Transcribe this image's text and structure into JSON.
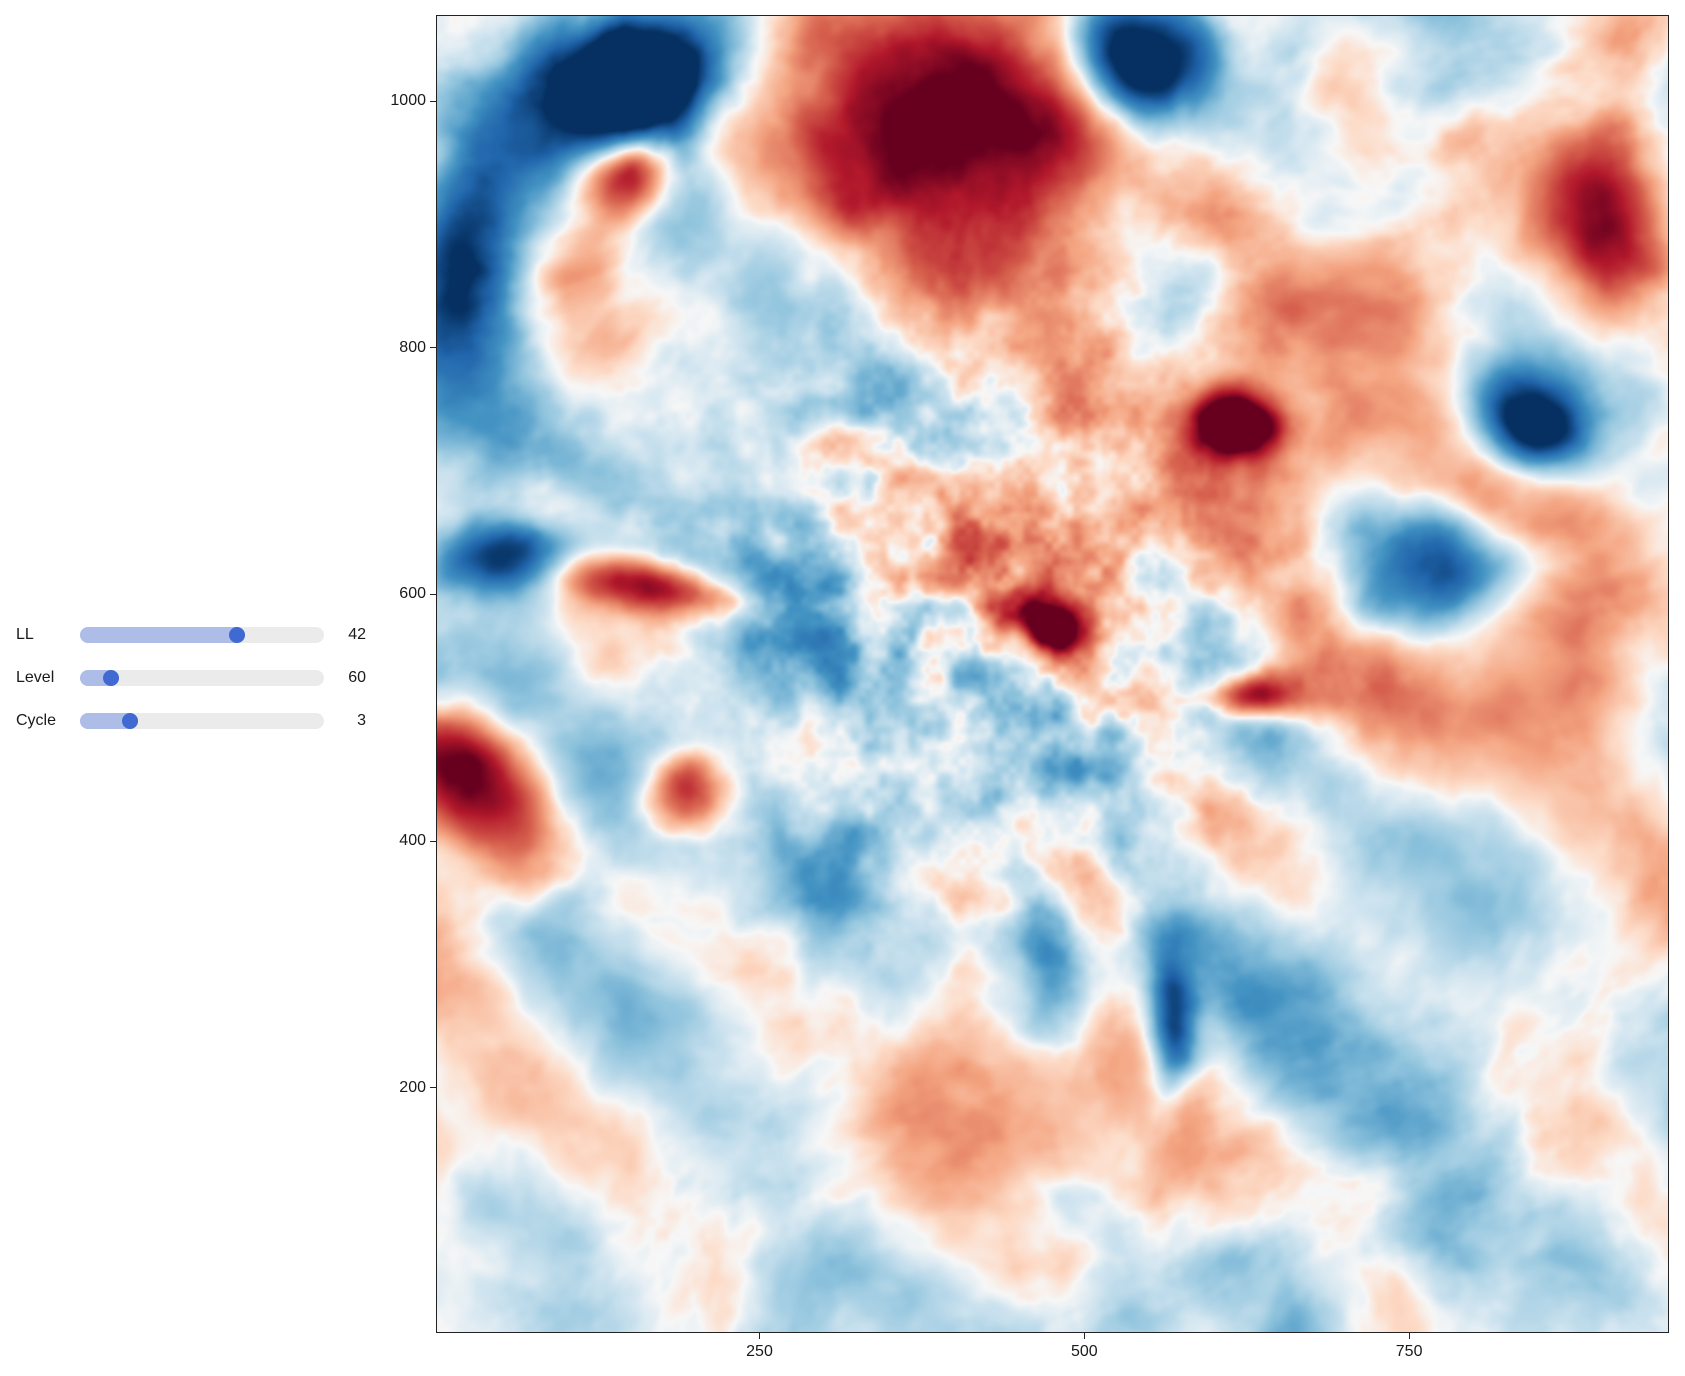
{
  "controls": {
    "sliders": [
      {
        "label": "LL",
        "value": "42",
        "fraction": 0.655
      },
      {
        "label": "Level",
        "value": "60",
        "fraction": 0.1
      },
      {
        "label": "Cycle",
        "value": "3",
        "fraction": 0.185
      }
    ]
  },
  "colors": {
    "slider_track": "#ebebeb",
    "slider_fill": "#aebce8",
    "slider_knob": "#4169d2",
    "colormap_low": "#053061",
    "colormap_mid": "#f7f7f7",
    "colormap_high": "#67001f"
  },
  "chart_data": {
    "type": "heatmap",
    "colormap": "RdBu (diverging, red = positive, blue = negative)",
    "x_ticks": [
      250,
      500,
      750
    ],
    "y_ticks": [
      200,
      400,
      600,
      800,
      1000
    ],
    "xlim": [
      1,
      950
    ],
    "ylim": [
      1,
      1070
    ],
    "grid": false,
    "title": "",
    "xlabel": "",
    "ylabel": ""
  }
}
